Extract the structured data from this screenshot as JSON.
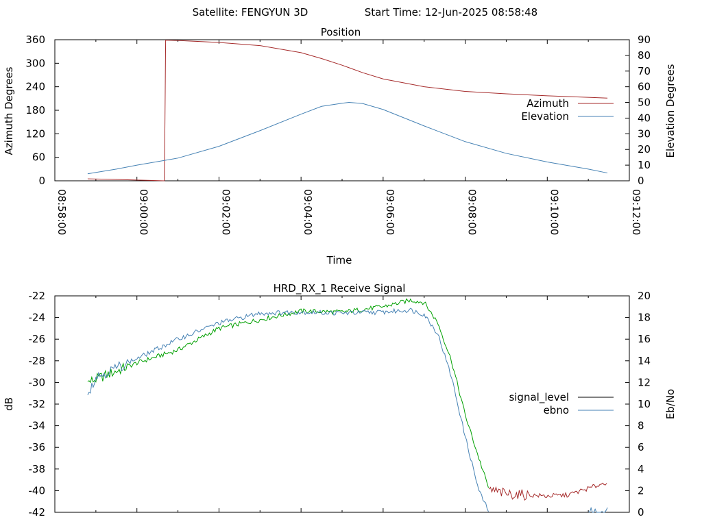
{
  "header": {
    "satellite_text": "Satellite: FENGYUN 3D",
    "start_time_text": "Start Time: 12-Jun-2025 08:58:48"
  },
  "chart_data": [
    {
      "type": "line",
      "title": "Position",
      "xlabel": "Time",
      "ylabel": "Azimuth Degrees",
      "y2label": "Elevation Degrees",
      "x_range": [
        "08:58:00",
        "09:12:00"
      ],
      "x_ticks": [
        "08:58:00",
        "09:00:00",
        "09:02:00",
        "09:04:00",
        "09:06:00",
        "09:08:00",
        "09:10:00",
        "09:12:00"
      ],
      "ylim": [
        0,
        360
      ],
      "y_ticks": [
        "0",
        "60",
        "120",
        "180",
        "240",
        "300",
        "360"
      ],
      "y2lim": [
        0,
        90
      ],
      "y2_ticks": [
        "0",
        "10",
        "20",
        "30",
        "40",
        "50",
        "60",
        "70",
        "80",
        "90"
      ],
      "legend_position": "right",
      "series": [
        {
          "name": "Azimuth",
          "axis": "y",
          "color": "#a52a2a",
          "x": [
            "08:58:48",
            "08:59:20",
            "09:00:00",
            "09:00:20",
            "09:00:40",
            "09:00:41",
            "09:00:42",
            "09:01:00",
            "09:02:00",
            "09:03:00",
            "09:04:00",
            "09:04:30",
            "09:05:00",
            "09:05:30",
            "09:06:00",
            "09:07:00",
            "09:08:00",
            "09:09:00",
            "09:10:00",
            "09:11:00",
            "09:11:28"
          ],
          "values": [
            5,
            4,
            2,
            1,
            0,
            150,
            359,
            358,
            353,
            345,
            327,
            312,
            295,
            276,
            260,
            240,
            228,
            222,
            217,
            213,
            211
          ]
        },
        {
          "name": "Elevation",
          "axis": "y2",
          "color": "#4682b4",
          "x": [
            "08:58:48",
            "08:59:30",
            "09:00:00",
            "09:01:00",
            "09:02:00",
            "09:03:00",
            "09:04:00",
            "09:04:30",
            "09:05:00",
            "09:05:10",
            "09:05:30",
            "09:06:00",
            "09:07:00",
            "09:08:00",
            "09:09:00",
            "09:10:00",
            "09:11:00",
            "09:11:28"
          ],
          "values": [
            4.5,
            7.5,
            10,
            14.5,
            22,
            32,
            42.5,
            47.5,
            49.5,
            50,
            49.3,
            45.5,
            35,
            25,
            17.5,
            12,
            7.5,
            5
          ]
        }
      ]
    },
    {
      "type": "line",
      "title": "HRD_RX_1 Receive Signal",
      "ylabel": "dB",
      "y2label": "Eb/No",
      "ylim": [
        -42,
        -22
      ],
      "y_ticks": [
        "-22",
        "-24",
        "-26",
        "-28",
        "-30",
        "-32",
        "-34",
        "-36",
        "-38",
        "-40",
        "-42"
      ],
      "y2lim": [
        0,
        20
      ],
      "y2_ticks": [
        "0",
        "2",
        "4",
        "6",
        "8",
        "10",
        "12",
        "14",
        "16",
        "18",
        "20"
      ],
      "legend_position": "right",
      "series": [
        {
          "name": "signal_level",
          "axis": "y",
          "color": "#000000",
          "segments": [
            {
              "color": "#00a000",
              "x": [
                "08:58:48",
                "09:00:00",
                "09:01:00",
                "09:02:00",
                "09:03:00",
                "09:04:00",
                "09:05:00",
                "09:06:00",
                "09:06:40",
                "09:07:00",
                "09:07:20",
                "09:07:40",
                "09:08:00",
                "09:08:20",
                "09:08:35"
              ],
              "values": [
                -30,
                -28.2,
                -27,
                -25,
                -24.2,
                -23.4,
                -23.5,
                -23,
                -22.4,
                -22.6,
                -24.5,
                -28,
                -33,
                -37,
                -39.9
              ]
            },
            {
              "color": "#a52a2a",
              "x": [
                "09:08:35",
                "09:09:00",
                "09:09:30",
                "09:10:00",
                "09:10:30",
                "09:11:00",
                "09:11:28"
              ],
              "values": [
                -39.9,
                -40.3,
                -40.4,
                -40.5,
                -40.4,
                -39.8,
                -39.2
              ]
            }
          ]
        },
        {
          "name": "ebno",
          "axis": "y2",
          "color": "#4682b4",
          "x": [
            "08:58:48",
            "08:59:00",
            "09:00:00",
            "09:01:00",
            "09:02:00",
            "09:03:00",
            "09:04:00",
            "09:05:00",
            "09:06:00",
            "09:06:40",
            "09:07:00",
            "09:07:20",
            "09:07:40",
            "09:08:00",
            "09:08:20",
            "09:08:35"
          ],
          "values": [
            11,
            12.5,
            14.2,
            16,
            17.5,
            18.4,
            18.5,
            18.4,
            18.5,
            18.7,
            18.3,
            16.5,
            12.5,
            7,
            2,
            0
          ],
          "tail_x": [
            "09:11:00",
            "09:11:28"
          ],
          "tail_values": [
            0,
            0.15
          ]
        }
      ]
    }
  ]
}
